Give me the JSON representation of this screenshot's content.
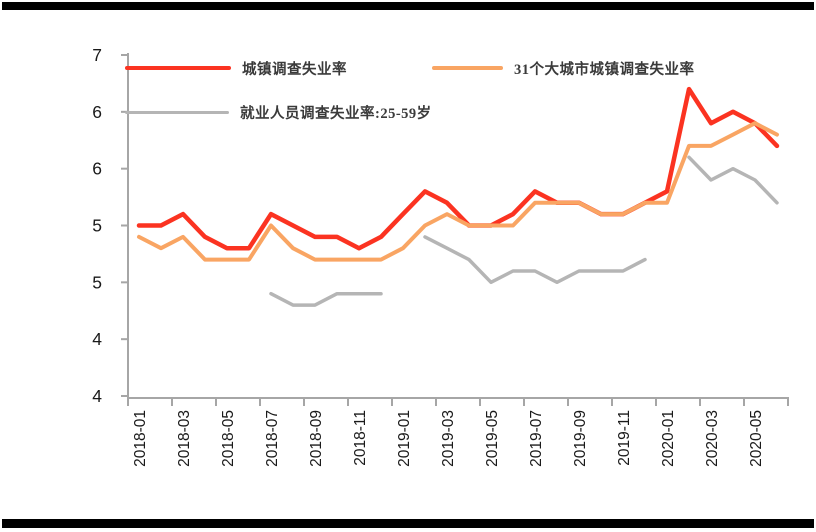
{
  "chart_data": {
    "type": "line",
    "title": "",
    "xlabel": "",
    "ylabel": "",
    "grid": false,
    "legend_position": "top-left-two-rows",
    "x": [
      "2018-01",
      "2018-02",
      "2018-03",
      "2018-04",
      "2018-05",
      "2018-06",
      "2018-07",
      "2018-08",
      "2018-09",
      "2018-10",
      "2018-11",
      "2018-12",
      "2019-01",
      "2019-02",
      "2019-03",
      "2019-04",
      "2019-05",
      "2019-06",
      "2019-07",
      "2019-08",
      "2019-09",
      "2019-10",
      "2019-11",
      "2019-12",
      "2020-01",
      "2020-02",
      "2020-03",
      "2020-04",
      "2020-05",
      "2020-06"
    ],
    "x_tick_labels": [
      "2018-01",
      "2018-03",
      "2018-05",
      "2018-07",
      "2018-09",
      "2018-11",
      "2019-01",
      "2019-03",
      "2019-05",
      "2019-07",
      "2019-09",
      "2019-11",
      "2020-01",
      "2020-03",
      "2020-05"
    ],
    "y_axis": {
      "min": 3.5,
      "max": 6.5,
      "step": 0.5,
      "tick_labels_top_to_bottom": [
        "7",
        "6",
        "6",
        "5",
        "5",
        "4",
        "4"
      ]
    },
    "series": [
      {
        "name": "城镇调查失业率",
        "color": "#FB3321",
        "line_width": 4.5,
        "values": [
          5.0,
          5.0,
          5.1,
          4.9,
          4.8,
          4.8,
          5.1,
          5.0,
          4.9,
          4.9,
          4.8,
          4.9,
          5.1,
          5.3,
          5.2,
          5.0,
          5.0,
          5.1,
          5.3,
          5.2,
          5.2,
          5.1,
          5.1,
          5.2,
          5.3,
          6.2,
          5.9,
          6.0,
          5.9,
          5.7
        ]
      },
      {
        "name": "31个大城市城镇调查失业率",
        "color": "#F9A563",
        "line_width": 4,
        "values": [
          4.9,
          4.8,
          4.9,
          4.7,
          4.7,
          4.7,
          5.0,
          4.8,
          4.7,
          4.7,
          4.7,
          4.7,
          4.8,
          5.0,
          5.1,
          5.0,
          5.0,
          5.0,
          5.2,
          5.2,
          5.2,
          5.1,
          5.1,
          5.2,
          5.2,
          5.7,
          5.7,
          5.8,
          5.9,
          5.8
        ]
      },
      {
        "name": "就业人员调查失业率:25-59岁",
        "color": "#B5B5B5",
        "line_width": 3.5,
        "values": [
          null,
          null,
          null,
          null,
          null,
          null,
          4.4,
          4.3,
          4.3,
          4.4,
          4.4,
          4.4,
          null,
          4.9,
          4.8,
          4.7,
          4.5,
          4.6,
          4.6,
          4.5,
          4.6,
          4.6,
          4.6,
          4.7,
          null,
          5.6,
          5.4,
          5.5,
          5.4,
          5.2
        ]
      }
    ]
  },
  "colors": {
    "axis": "#A6A6A6",
    "tick_label": "#1A1A1A",
    "legend_text": "#3A3A3A",
    "frame_bar": "#000000",
    "background": "#FFFFFF"
  }
}
